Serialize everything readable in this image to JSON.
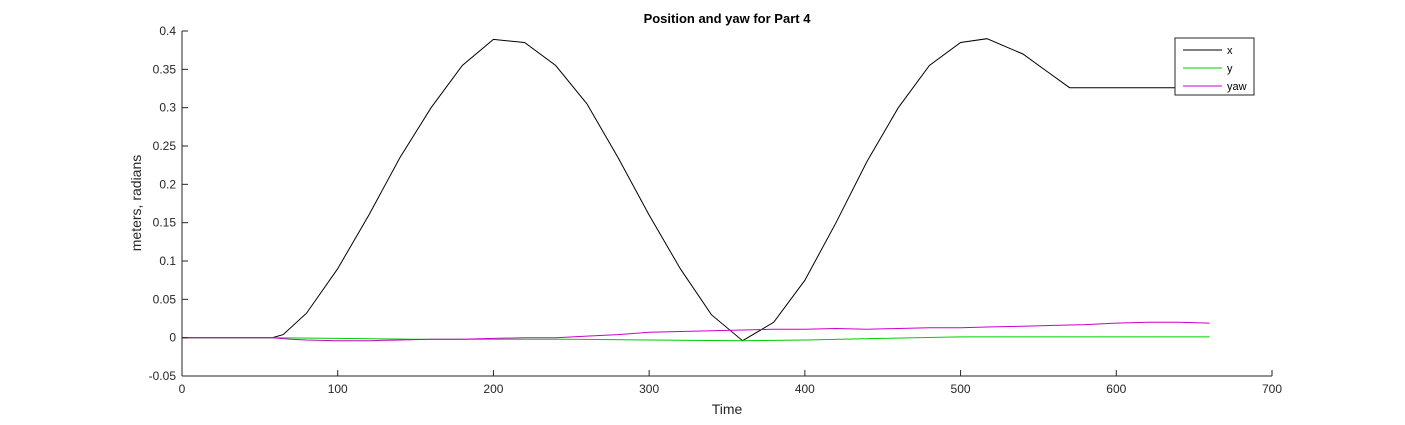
{
  "chart_data": {
    "type": "line",
    "title": "Position and yaw for Part 4",
    "xlabel": "Time",
    "ylabel": "meters, radians",
    "xlim": [
      0,
      700
    ],
    "ylim": [
      -0.05,
      0.4
    ],
    "xticks": [
      0,
      100,
      200,
      300,
      400,
      500,
      600,
      700
    ],
    "xtick_labels": [
      "0",
      "100",
      "200",
      "300",
      "400",
      "500",
      "600",
      "700"
    ],
    "yticks": [
      -0.05,
      0,
      0.05,
      0.1,
      0.15,
      0.2,
      0.25,
      0.3,
      0.35,
      0.4
    ],
    "ytick_labels": [
      "-0.05",
      "0",
      "0.05",
      "0.1",
      "0.15",
      "0.2",
      "0.25",
      "0.3",
      "0.35",
      "0.4"
    ],
    "grid": false,
    "legend_position": "top-right",
    "series": [
      {
        "name": "x",
        "color": "#000000",
        "x": [
          0,
          58,
          65,
          80,
          100,
          120,
          140,
          160,
          180,
          200,
          220,
          240,
          260,
          280,
          300,
          320,
          340,
          360,
          380,
          400,
          420,
          440,
          460,
          480,
          500,
          517,
          540,
          555,
          570,
          600,
          630,
          660
        ],
        "y": [
          0.0,
          0.0,
          0.004,
          0.032,
          0.09,
          0.16,
          0.235,
          0.3,
          0.355,
          0.389,
          0.385,
          0.355,
          0.305,
          0.235,
          0.16,
          0.09,
          0.03,
          -0.004,
          0.02,
          0.075,
          0.15,
          0.23,
          0.3,
          0.355,
          0.385,
          0.39,
          0.37,
          0.348,
          0.326,
          0.326,
          0.326,
          0.326
        ]
      },
      {
        "name": "y",
        "color": "#00cc00",
        "x": [
          0,
          58,
          100,
          150,
          200,
          250,
          300,
          360,
          400,
          450,
          500,
          550,
          600,
          660
        ],
        "y": [
          0.0,
          0.0,
          -0.001,
          -0.002,
          -0.002,
          -0.002,
          -0.003,
          -0.004,
          -0.003,
          -0.001,
          0.001,
          0.001,
          0.001,
          0.001
        ]
      },
      {
        "name": "yaw",
        "color": "#cc00cc",
        "x": [
          0,
          58,
          70,
          80,
          100,
          120,
          140,
          160,
          180,
          200,
          220,
          240,
          260,
          280,
          300,
          320,
          340,
          360,
          380,
          400,
          420,
          440,
          460,
          480,
          500,
          520,
          540,
          560,
          580,
          600,
          620,
          640,
          660
        ],
        "y": [
          0.0,
          0.0,
          -0.002,
          -0.003,
          -0.004,
          -0.004,
          -0.003,
          -0.002,
          -0.002,
          -0.001,
          0.0,
          0.0,
          0.002,
          0.004,
          0.007,
          0.008,
          0.009,
          0.01,
          0.011,
          0.011,
          0.012,
          0.011,
          0.012,
          0.013,
          0.013,
          0.014,
          0.015,
          0.016,
          0.017,
          0.019,
          0.02,
          0.02,
          0.019
        ]
      }
    ]
  }
}
